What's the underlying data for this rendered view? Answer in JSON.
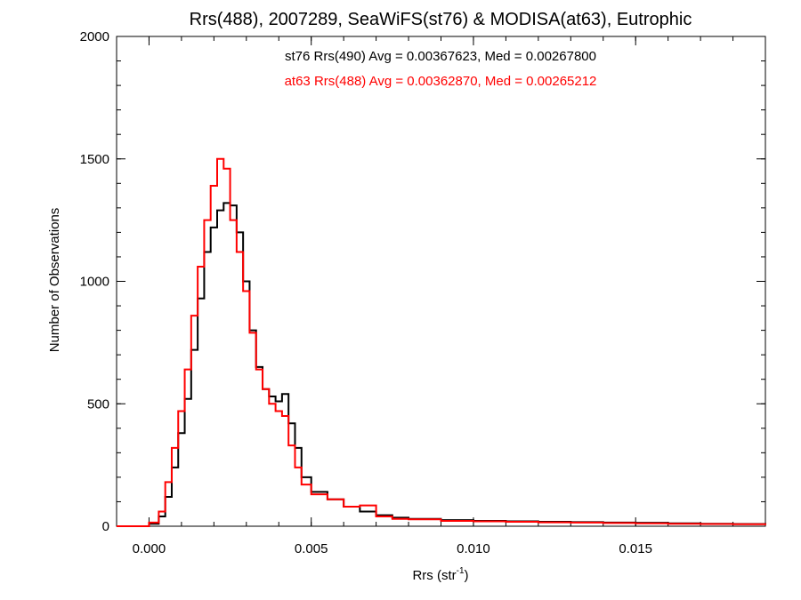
{
  "chart_data": {
    "type": "line",
    "title": "Rrs(488), 2007289, SeaWiFS(st76) & MODISA(at63), Eutrophic",
    "xlabel_main": "Rrs (str",
    "xlabel_sup": "-1",
    "xlabel_close": ")",
    "ylabel": "Number of Observations",
    "xlim": [
      -0.001,
      0.019
    ],
    "ylim": [
      0,
      2000
    ],
    "xticks": [
      0.0,
      0.005,
      0.01,
      0.015
    ],
    "xtick_labels": [
      "0.000",
      "0.005",
      "0.010",
      "0.015"
    ],
    "yticks": [
      0,
      500,
      1000,
      1500,
      2000
    ],
    "ytick_labels": [
      "0",
      "500",
      "1000",
      "1500",
      "2000"
    ],
    "annotations": [
      {
        "text": "st76 Rrs(490) Avg = 0.00367623, Med = 0.00267800",
        "color": "#000000"
      },
      {
        "text": "at63 Rrs(488) Avg = 0.00362870, Med = 0.00265212",
        "color": "#ff0000"
      }
    ],
    "series": [
      {
        "color": "#000000",
        "x": [
          -0.001,
          -0.0004,
          0.0,
          0.0003,
          0.0005,
          0.0007,
          0.0009,
          0.0011,
          0.0013,
          0.0015,
          0.0017,
          0.0019,
          0.0021,
          0.0023,
          0.0025,
          0.0027,
          0.0029,
          0.0031,
          0.0033,
          0.0035,
          0.0037,
          0.0039,
          0.0041,
          0.0043,
          0.0045,
          0.0047,
          0.005,
          0.0055,
          0.006,
          0.0065,
          0.007,
          0.0075,
          0.008,
          0.009,
          0.01,
          0.011,
          0.012,
          0.013,
          0.014,
          0.015,
          0.016,
          0.017,
          0.018,
          0.019
        ],
        "values": [
          0,
          0,
          10,
          40,
          120,
          240,
          380,
          520,
          720,
          930,
          1120,
          1220,
          1290,
          1320,
          1310,
          1200,
          1000,
          800,
          650,
          560,
          530,
          510,
          540,
          420,
          320,
          200,
          140,
          110,
          80,
          60,
          45,
          35,
          30,
          25,
          22,
          20,
          18,
          17,
          15,
          14,
          12,
          10,
          9,
          6
        ]
      },
      {
        "color": "#ff0000",
        "x": [
          -0.001,
          -0.0004,
          0.0,
          0.0003,
          0.0005,
          0.0007,
          0.0009,
          0.0011,
          0.0013,
          0.0015,
          0.0017,
          0.0019,
          0.0021,
          0.0023,
          0.0025,
          0.0027,
          0.0029,
          0.0031,
          0.0033,
          0.0035,
          0.0037,
          0.0039,
          0.0041,
          0.0043,
          0.0045,
          0.0047,
          0.005,
          0.0055,
          0.006,
          0.0065,
          0.007,
          0.0075,
          0.008,
          0.009,
          0.01,
          0.011,
          0.012,
          0.013,
          0.014,
          0.015,
          0.016,
          0.017,
          0.018,
          0.019
        ],
        "values": [
          0,
          0,
          15,
          60,
          180,
          320,
          470,
          640,
          860,
          1060,
          1250,
          1390,
          1500,
          1460,
          1250,
          1120,
          960,
          790,
          640,
          560,
          500,
          470,
          450,
          330,
          240,
          170,
          130,
          110,
          80,
          85,
          40,
          30,
          28,
          22,
          20,
          18,
          16,
          15,
          13,
          12,
          10,
          9,
          8,
          5
        ]
      }
    ]
  }
}
